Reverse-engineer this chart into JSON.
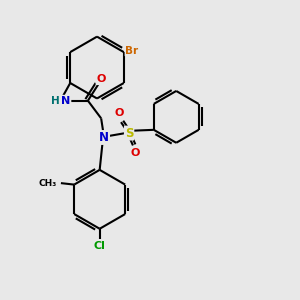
{
  "background_color": "#e8e8e8",
  "bond_color": "#000000",
  "atom_colors": {
    "N": "#0000cc",
    "H": "#007070",
    "O": "#dd0000",
    "S": "#bbbb00",
    "Br": "#cc6600",
    "Cl": "#009900",
    "C": "#000000"
  },
  "figsize": [
    3.0,
    3.0
  ],
  "dpi": 100
}
